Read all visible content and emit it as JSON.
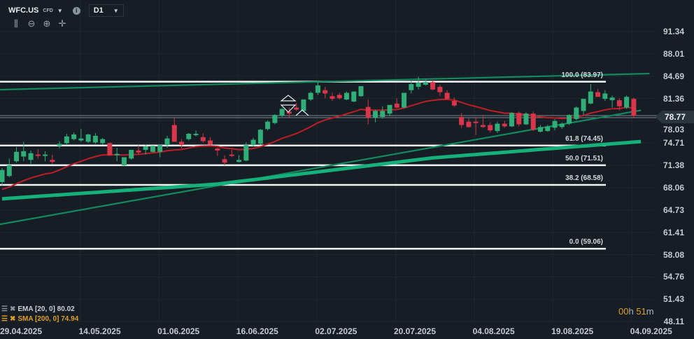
{
  "header": {
    "symbol": "WFC.US",
    "instrument_type": "CFD",
    "timeframe": "D1"
  },
  "tools": [
    {
      "name": "chart-type-icon",
      "glyph": "⫼"
    },
    {
      "name": "zoom-out-icon",
      "glyph": "⊖"
    },
    {
      "name": "zoom-in-icon",
      "glyph": "⊕"
    },
    {
      "name": "crosshair-icon",
      "glyph": "✛"
    }
  ],
  "colors": {
    "bull": "#2fae78",
    "bear": "#d8364a",
    "ema": "#c01e26",
    "sma": "#16b07a",
    "trend": "#138a5e",
    "fib": "#f2f4f5",
    "bg": "#161d24",
    "orange": "#e0a024"
  },
  "price_axis": [
    "91.34",
    "88.01",
    "84.69",
    "81.36",
    "78.03",
    "74.71",
    "71.38",
    "68.06",
    "64.73",
    "61.41",
    "58.08",
    "54.76",
    "51.43",
    "48.11"
  ],
  "current_price": "78.77",
  "date_axis": [
    "29.04.2025",
    "14.05.2025",
    "01.06.2025",
    "16.06.2025",
    "02.07.2025",
    "20.07.2025",
    "04.08.2025",
    "19.08.2025",
    "04.09.2025"
  ],
  "indicators": {
    "ema_label": "EMA [20, 0] 80.02",
    "sma_label": "SMA [200, 0] 74.94"
  },
  "timer": {
    "h": "00",
    "h_unit": "h",
    "m": "51",
    "m_unit": "m"
  },
  "fib_levels": [
    {
      "label": "100.0 (83.97)",
      "price": 83.97
    },
    {
      "label": "61.8 (74.45)",
      "price": 74.45
    },
    {
      "label": "50.0 (71.51)",
      "price": 71.51
    },
    {
      "label": "38.2 (68.58)",
      "price": 68.58
    },
    {
      "label": "0.0 (59.06)",
      "price": 59.06
    }
  ],
  "chart_data": {
    "type": "candlestick",
    "ylim": [
      48.11,
      91.34
    ],
    "candles": [
      [
        68.9,
        71.0,
        68.4,
        70.7
      ],
      [
        69.8,
        72.4,
        69.6,
        71.4
      ],
      [
        72.0,
        74.1,
        71.8,
        73.4
      ],
      [
        72.7,
        74.9,
        72.0,
        73.5
      ],
      [
        72.2,
        73.6,
        71.5,
        73.2
      ],
      [
        73.0,
        73.8,
        72.4,
        72.8
      ],
      [
        72.8,
        73.5,
        72.0,
        73.0
      ],
      [
        72.2,
        73.0,
        71.6,
        71.9
      ],
      [
        74.3,
        75.0,
        73.9,
        74.6
      ],
      [
        74.7,
        76.1,
        74.4,
        75.7
      ],
      [
        75.3,
        76.3,
        75.1,
        76.0
      ],
      [
        75.1,
        76.8,
        74.9,
        75.4
      ],
      [
        74.9,
        76.1,
        74.7,
        76.0
      ],
      [
        74.8,
        76.2,
        74.6,
        75.8
      ],
      [
        74.7,
        75.5,
        74.5,
        75.3
      ],
      [
        74.7,
        74.8,
        72.8,
        72.9
      ],
      [
        72.9,
        74.0,
        72.0,
        73.1
      ],
      [
        71.4,
        72.6,
        71.3,
        72.6
      ],
      [
        72.4,
        73.7,
        72.2,
        73.7
      ],
      [
        73.6,
        74.4,
        73.0,
        73.3
      ],
      [
        73.7,
        74.5,
        73.0,
        74.2
      ],
      [
        73.4,
        74.3,
        73.3,
        74.3
      ],
      [
        73.4,
        74.5,
        72.6,
        74.4
      ],
      [
        74.4,
        75.8,
        74.0,
        75.4
      ],
      [
        77.4,
        78.5,
        74.9,
        74.9
      ],
      [
        74.9,
        75.3,
        73.9,
        74.4
      ],
      [
        75.3,
        76.2,
        75.1,
        76.1
      ],
      [
        75.9,
        76.6,
        75.7,
        76.1
      ],
      [
        75.6,
        76.2,
        74.8,
        75.0
      ],
      [
        75.1,
        75.6,
        74.4,
        74.5
      ],
      [
        73.9,
        74.0,
        72.8,
        73.6
      ],
      [
        72.3,
        72.9,
        71.4,
        71.8
      ],
      [
        73.0,
        73.7,
        72.6,
        72.8
      ],
      [
        71.9,
        72.9,
        71.8,
        72.2
      ],
      [
        72.1,
        74.8,
        72.0,
        74.4
      ],
      [
        74.4,
        75.5,
        74.2,
        75.2
      ],
      [
        74.6,
        76.8,
        74.5,
        76.7
      ],
      [
        76.8,
        78.1,
        76.6,
        77.9
      ],
      [
        77.7,
        79.0,
        77.5,
        78.9
      ],
      [
        78.8,
        79.9,
        78.6,
        79.8
      ],
      [
        79.4,
        80.0,
        78.4,
        79.1
      ],
      [
        80.0,
        80.7,
        79.5,
        79.7
      ],
      [
        79.5,
        81.2,
        79.3,
        81.2
      ],
      [
        81.2,
        82.4,
        81.0,
        82.2
      ],
      [
        82.2,
        83.8,
        81.9,
        83.3
      ],
      [
        82.6,
        83.1,
        81.4,
        82.1
      ],
      [
        81.7,
        82.2,
        81.0,
        81.3
      ],
      [
        81.9,
        82.2,
        81.2,
        81.4
      ],
      [
        81.2,
        82.4,
        81.1,
        82.2
      ],
      [
        80.9,
        82.4,
        80.8,
        82.4
      ],
      [
        81.7,
        83.2,
        81.6,
        83.2
      ],
      [
        80.1,
        81.2,
        77.5,
        78.5
      ],
      [
        78.5,
        79.7,
        77.8,
        79.5
      ],
      [
        78.6,
        80.2,
        78.3,
        79.5
      ],
      [
        79.1,
        80.4,
        78.7,
        80.4
      ],
      [
        80.6,
        81.4,
        79.9,
        80.0
      ],
      [
        80.0,
        82.2,
        79.9,
        82.2
      ],
      [
        82.6,
        84.0,
        82.1,
        83.5
      ],
      [
        83.1,
        84.6,
        82.7,
        83.7
      ],
      [
        83.4,
        84.2,
        83.3,
        83.8
      ],
      [
        83.8,
        84.1,
        82.6,
        82.7
      ],
      [
        83.1,
        83.4,
        81.7,
        82.3
      ],
      [
        82.2,
        82.6,
        81.2,
        81.3
      ],
      [
        81.0,
        81.5,
        80.1,
        80.3
      ],
      [
        78.6,
        79.2,
        77.0,
        77.4
      ],
      [
        77.9,
        78.4,
        77.0,
        77.1
      ],
      [
        77.9,
        78.6,
        75.9,
        77.7
      ],
      [
        77.4,
        78.9,
        77.0,
        77.1
      ],
      [
        77.4,
        77.8,
        76.3,
        76.6
      ],
      [
        76.5,
        77.9,
        76.2,
        77.6
      ],
      [
        77.6,
        78.0,
        77.0,
        77.2
      ],
      [
        77.2,
        79.3,
        77.1,
        79.2
      ],
      [
        79.2,
        79.4,
        77.2,
        77.5
      ],
      [
        77.5,
        79.3,
        77.4,
        79.1
      ],
      [
        79.1,
        79.4,
        76.5,
        76.7
      ],
      [
        76.4,
        77.4,
        76.3,
        77.1
      ],
      [
        76.5,
        77.4,
        76.4,
        77.2
      ],
      [
        77.0,
        78.3,
        76.6,
        78.0
      ],
      [
        77.1,
        77.8,
        76.8,
        77.6
      ],
      [
        77.6,
        79.0,
        77.4,
        78.9
      ],
      [
        78.3,
        80.2,
        78.1,
        80.0
      ],
      [
        79.5,
        81.3,
        78.8,
        81.3
      ],
      [
        80.6,
        83.5,
        80.5,
        82.4
      ],
      [
        82.3,
        82.8,
        81.6,
        81.6
      ],
      [
        81.3,
        82.6,
        81.0,
        82.1
      ],
      [
        81.1,
        81.8,
        80.0,
        81.5
      ],
      [
        81.1,
        81.4,
        79.6,
        80.2
      ],
      [
        80.0,
        81.8,
        79.8,
        81.6
      ],
      [
        81.3,
        81.5,
        78.4,
        78.77
      ]
    ],
    "ema20_seed": 67.5,
    "sma200_points": [
      [
        0,
        66.4
      ],
      [
        30,
        68.6
      ],
      [
        60,
        72.5
      ],
      [
        89,
        74.94
      ]
    ],
    "trendlines": [
      {
        "name": "upper-trendline",
        "from": [
          -0.3,
          82.67
        ],
        "to": [
          90.2,
          85.07
        ]
      },
      {
        "name": "lower-trendline",
        "from": [
          -0.3,
          62.6
        ],
        "to": [
          89,
          79.6
        ]
      }
    ]
  }
}
